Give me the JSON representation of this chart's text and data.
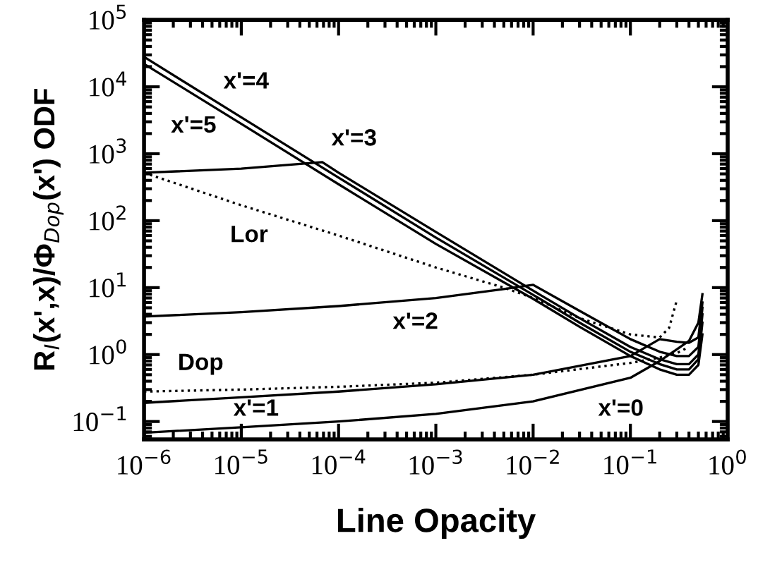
{
  "chart_data": {
    "type": "line",
    "xlabel": "Line Opacity",
    "ylabel": "R$_{I}$(x',x)/Φ$_{Dop}$(x') ODF",
    "log": "xy",
    "grid": false,
    "legend": false,
    "marker": "none",
    "xlim": [
      1e-06,
      1
    ],
    "ylim": [
      0.054,
      100000
    ],
    "xticks": [
      {
        "value": 1e-06,
        "label": "10$^{−6}$"
      },
      {
        "value": 1e-05,
        "label": "10$^{−5}$"
      },
      {
        "value": 0.0001,
        "label": "10$^{−4}$"
      },
      {
        "value": 0.001,
        "label": "10$^{−3}$"
      },
      {
        "value": 0.01,
        "label": "10$^{−2}$"
      },
      {
        "value": 0.1,
        "label": "10$^{−1}$"
      },
      {
        "value": 1,
        "label": "10$^{0}$"
      }
    ],
    "yticks": [
      {
        "value": 0.1,
        "label": "10$^{−1}$"
      },
      {
        "value": 1,
        "label": "10$^{0}$"
      },
      {
        "value": 10,
        "label": "10$^{1}$"
      },
      {
        "value": 100,
        "label": "10$^{2}$"
      },
      {
        "value": 1000,
        "label": "10$^{3}$"
      },
      {
        "value": 10000,
        "label": "10$^{4}$"
      },
      {
        "value": 100000,
        "label": "10$^{5}$"
      }
    ],
    "series": [
      {
        "name": "x'=5",
        "color": "#000000",
        "line_style": "solid",
        "x": [
          1e-06,
          1e-05,
          0.0001,
          0.001,
          0.01,
          0.03,
          0.1,
          0.2,
          0.3,
          0.4,
          0.5,
          0.55
        ],
        "values": [
          22000,
          2800,
          350,
          45,
          6.8,
          2.6,
          0.95,
          0.6,
          0.5,
          0.5,
          0.7,
          2
        ]
      },
      {
        "name": "x'=4",
        "color": "#000000",
        "line_style": "solid",
        "x": [
          1e-06,
          1e-05,
          0.0001,
          0.001,
          0.01,
          0.03,
          0.1,
          0.2,
          0.3,
          0.4,
          0.5,
          0.55
        ],
        "values": [
          28000,
          3500,
          440,
          56,
          7.8,
          3.0,
          1.1,
          0.72,
          0.6,
          0.6,
          0.85,
          3
        ]
      },
      {
        "name": "x'=3",
        "color": "#000000",
        "line_style": "solid",
        "x": [
          1e-06,
          1e-05,
          6.8e-05,
          0.0001,
          0.001,
          0.01,
          0.03,
          0.1,
          0.2,
          0.3,
          0.4,
          0.5,
          0.55
        ],
        "values": [
          520,
          600,
          750,
          520,
          68,
          9,
          3.5,
          1.3,
          0.85,
          0.72,
          0.72,
          1.0,
          4
        ]
      },
      {
        "name": "x'=2",
        "color": "#000000",
        "line_style": "solid",
        "x": [
          1e-06,
          1e-05,
          0.0001,
          0.001,
          0.005,
          0.01,
          0.03,
          0.1,
          0.2,
          0.3,
          0.4,
          0.5,
          0.55
        ],
        "values": [
          3.7,
          4.3,
          5.3,
          7,
          9.5,
          11,
          4.5,
          1.7,
          1.1,
          0.95,
          0.95,
          1.3,
          5
        ]
      },
      {
        "color": "#000000",
        "line_style": "solid",
        "x": [
          1e-06,
          1e-05,
          0.0001,
          0.001,
          0.01,
          0.1,
          0.2,
          0.3,
          0.4,
          0.5,
          0.55
        ],
        "name": "x'=1",
        "values": [
          0.19,
          0.23,
          0.28,
          0.36,
          0.5,
          0.95,
          1.7,
          1.55,
          1.5,
          1.8,
          6
        ]
      },
      {
        "color": "#000000",
        "line_style": "solid",
        "x": [
          1e-06,
          1e-05,
          0.0001,
          0.001,
          0.01,
          0.1,
          0.2,
          0.3,
          0.4,
          0.5,
          0.55
        ],
        "name": "x'=0",
        "values": [
          0.068,
          0.082,
          0.1,
          0.13,
          0.2,
          0.45,
          0.8,
          1.2,
          1.6,
          3,
          8
        ]
      },
      {
        "color": "#000000",
        "line_style": "dotted",
        "x": [
          1e-06,
          1e-05,
          0.0001,
          0.001,
          0.005,
          0.01,
          0.03,
          0.1,
          0.2,
          0.25,
          0.3
        ],
        "name": "Lor",
        "values": [
          520,
          170,
          60,
          20,
          10,
          7,
          3.5,
          2.0,
          1.8,
          2.5,
          6.5
        ]
      },
      {
        "color": "#000000",
        "line_style": "dotted",
        "x": [
          1e-06,
          1e-05,
          0.0001,
          0.001,
          0.01,
          0.1,
          0.2,
          0.3,
          0.4
        ],
        "name": "Dop",
        "values": [
          0.28,
          0.3,
          0.33,
          0.38,
          0.5,
          0.75,
          0.9,
          1.05,
          1.3
        ]
      }
    ]
  }
}
